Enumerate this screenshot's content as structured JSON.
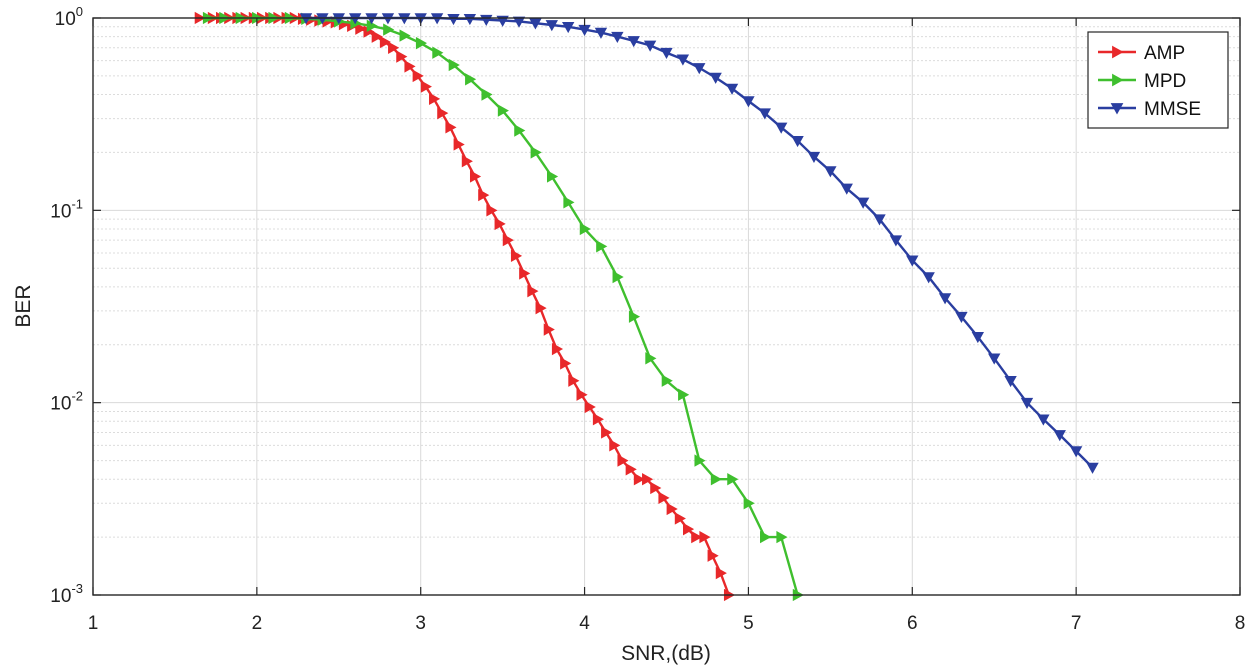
{
  "chart_data": {
    "type": "line",
    "xlabel": "SNR,(dB)",
    "ylabel": "BER",
    "xlim": [
      1,
      8
    ],
    "ylim": [
      0.001,
      1
    ],
    "yscale": "log",
    "x_ticks": [
      1,
      2,
      3,
      4,
      5,
      6,
      7,
      8
    ],
    "y_ticks": [
      {
        "value": 1,
        "base": "10",
        "exp": "0"
      },
      {
        "value": 0.1,
        "base": "10",
        "exp": "-1"
      },
      {
        "value": 0.01,
        "base": "10",
        "exp": "-2"
      },
      {
        "value": 0.001,
        "base": "10",
        "exp": "-3"
      }
    ],
    "grid": true,
    "minor_grid": true,
    "legend_position": "top-right",
    "series": [
      {
        "name": "AMP",
        "color": "#e8282a",
        "marker": "triangle-right",
        "x": [
          1.65,
          1.73,
          1.78,
          1.83,
          1.88,
          1.93,
          1.98,
          2.03,
          2.08,
          2.13,
          2.18,
          2.23,
          2.28,
          2.33,
          2.38,
          2.43,
          2.48,
          2.53,
          2.58,
          2.63,
          2.68,
          2.73,
          2.78,
          2.83,
          2.88,
          2.93,
          2.98,
          3.03,
          3.08,
          3.13,
          3.18,
          3.23,
          3.28,
          3.33,
          3.38,
          3.43,
          3.48,
          3.53,
          3.58,
          3.63,
          3.68,
          3.73,
          3.78,
          3.83,
          3.88,
          3.93,
          3.98,
          4.03,
          4.08,
          4.13,
          4.18,
          4.23,
          4.28,
          4.33,
          4.38,
          4.43,
          4.48,
          4.53,
          4.58,
          4.63,
          4.68,
          4.73,
          4.78,
          4.83,
          4.88
        ],
        "values": [
          1,
          1,
          1,
          1,
          1,
          1,
          1,
          1,
          1,
          1,
          1,
          1,
          0.99,
          0.98,
          0.97,
          0.96,
          0.95,
          0.93,
          0.91,
          0.88,
          0.85,
          0.8,
          0.75,
          0.7,
          0.63,
          0.56,
          0.5,
          0.44,
          0.38,
          0.32,
          0.27,
          0.22,
          0.18,
          0.15,
          0.12,
          0.1,
          0.085,
          0.07,
          0.058,
          0.047,
          0.038,
          0.031,
          0.024,
          0.019,
          0.016,
          0.013,
          0.011,
          0.0095,
          0.0082,
          0.007,
          0.006,
          0.005,
          0.0045,
          0.004,
          0.004,
          0.0036,
          0.0032,
          0.0028,
          0.0025,
          0.0022,
          0.002,
          0.002,
          0.0016,
          0.0013,
          0.001
        ]
      },
      {
        "name": "MPD",
        "color": "#3fbf2e",
        "marker": "triangle-right",
        "x": [
          1.7,
          1.8,
          1.9,
          2.0,
          2.1,
          2.2,
          2.3,
          2.4,
          2.5,
          2.6,
          2.7,
          2.8,
          2.9,
          3.0,
          3.1,
          3.2,
          3.3,
          3.4,
          3.5,
          3.6,
          3.7,
          3.8,
          3.9,
          4.0,
          4.1,
          4.2,
          4.3,
          4.4,
          4.5,
          4.6,
          4.7,
          4.8,
          4.9,
          5.0,
          5.1,
          5.2,
          5.3
        ],
        "values": [
          1,
          1,
          1,
          1,
          1,
          1,
          0.99,
          0.98,
          0.96,
          0.94,
          0.91,
          0.87,
          0.81,
          0.74,
          0.66,
          0.57,
          0.48,
          0.4,
          0.33,
          0.26,
          0.2,
          0.15,
          0.11,
          0.08,
          0.065,
          0.045,
          0.028,
          0.017,
          0.013,
          0.011,
          0.005,
          0.004,
          0.004,
          0.003,
          0.002,
          0.002,
          0.001
        ]
      },
      {
        "name": "MMSE",
        "color": "#2a3ea0",
        "marker": "triangle-down",
        "x": [
          2.3,
          2.4,
          2.5,
          2.6,
          2.7,
          2.8,
          2.9,
          3.0,
          3.1,
          3.2,
          3.3,
          3.4,
          3.5,
          3.6,
          3.7,
          3.8,
          3.9,
          4.0,
          4.1,
          4.2,
          4.3,
          4.4,
          4.5,
          4.6,
          4.7,
          4.8,
          4.9,
          5.0,
          5.1,
          5.2,
          5.3,
          5.4,
          5.5,
          5.6,
          5.7,
          5.8,
          5.9,
          6.0,
          6.1,
          6.2,
          6.3,
          6.4,
          6.5,
          6.6,
          6.7,
          6.8,
          6.9,
          7.0,
          7.1
        ],
        "values": [
          1,
          1,
          1,
          1,
          1,
          1,
          1,
          1,
          1,
          0.99,
          0.99,
          0.98,
          0.97,
          0.96,
          0.94,
          0.92,
          0.9,
          0.87,
          0.84,
          0.8,
          0.76,
          0.72,
          0.66,
          0.61,
          0.55,
          0.49,
          0.43,
          0.37,
          0.32,
          0.27,
          0.23,
          0.19,
          0.16,
          0.13,
          0.11,
          0.09,
          0.07,
          0.055,
          0.045,
          0.035,
          0.028,
          0.022,
          0.017,
          0.013,
          0.01,
          0.0082,
          0.0068,
          0.0056,
          0.0046
        ]
      }
    ]
  }
}
